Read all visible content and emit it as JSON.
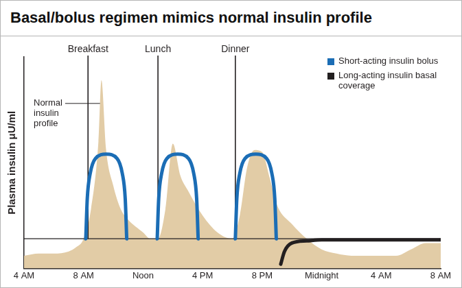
{
  "chart_data": {
    "type": "line",
    "title": "Basal/bolus regimen mimics normal insulin profile",
    "y_label": "Plasma insulin μU/ml",
    "xlim": [
      4,
      32
    ],
    "xticks": [
      {
        "value": 4,
        "label": "4 AM"
      },
      {
        "value": 8,
        "label": "8 AM"
      },
      {
        "value": 12,
        "label": "Noon"
      },
      {
        "value": 16,
        "label": "4 PM"
      },
      {
        "value": 20,
        "label": "8 PM"
      },
      {
        "value": 24,
        "label": "Midnight"
      },
      {
        "value": 28,
        "label": "4 AM"
      },
      {
        "value": 32,
        "label": "8 AM"
      }
    ],
    "ylim": [
      0,
      100
    ],
    "tick_labels": "x",
    "grid": false,
    "legend": "top-right",
    "baseline": 14,
    "events": [
      {
        "label": "Breakfast",
        "x": 8.3
      },
      {
        "label": "Lunch",
        "x": 13.0
      },
      {
        "label": "Dinner",
        "x": 18.2
      }
    ],
    "series": [
      {
        "name": "Normal insulin profile",
        "type": "area",
        "color": "#e2cca6",
        "x": [
          4,
          5,
          6,
          7,
          7.5,
          8,
          8.5,
          9,
          9.2,
          9.5,
          10,
          10.5,
          11,
          12,
          12.5,
          13,
          13.5,
          14,
          14.5,
          15,
          16,
          17,
          18,
          18.5,
          19,
          19.5,
          20,
          20.5,
          21,
          22,
          23,
          24,
          25,
          26,
          28,
          29,
          30,
          31,
          32
        ],
        "values": [
          6,
          7,
          7,
          8,
          10,
          14,
          28,
          60,
          89,
          57,
          39,
          28,
          23,
          17,
          14,
          14,
          28,
          59,
          44,
          37,
          25,
          17,
          14,
          25,
          48,
          56,
          55,
          43,
          30,
          21,
          14,
          9,
          7,
          6,
          6,
          6,
          9,
          12,
          12
        ]
      },
      {
        "name": "Short-acting insulin bolus",
        "type": "line",
        "color": "#1b6db5",
        "x": [
          8.15,
          8.25,
          8.45,
          8.8,
          9.53,
          10.25,
          10.6,
          10.8,
          10.9,
          11.5,
          12.95,
          13.05,
          13.25,
          13.6,
          14.33,
          15.05,
          15.4,
          15.6,
          15.7,
          17,
          18.2,
          18.3,
          18.5,
          18.85,
          19.58,
          20.3,
          20.65,
          20.85,
          20.95
        ],
        "values": [
          14,
          33,
          45,
          52,
          54,
          52,
          45,
          33,
          14,
          null,
          14,
          33,
          45,
          52,
          54,
          52,
          45,
          33,
          14,
          null,
          14,
          33,
          45,
          52,
          54,
          52,
          45,
          33,
          14
        ]
      },
      {
        "name": "Long-acting insulin basal coverage",
        "type": "line",
        "color": "#231f20",
        "x": [
          21.25,
          21.5,
          22,
          23,
          24,
          32
        ],
        "values": [
          2,
          8,
          12,
          13,
          13.5,
          13.5
        ]
      }
    ]
  }
}
